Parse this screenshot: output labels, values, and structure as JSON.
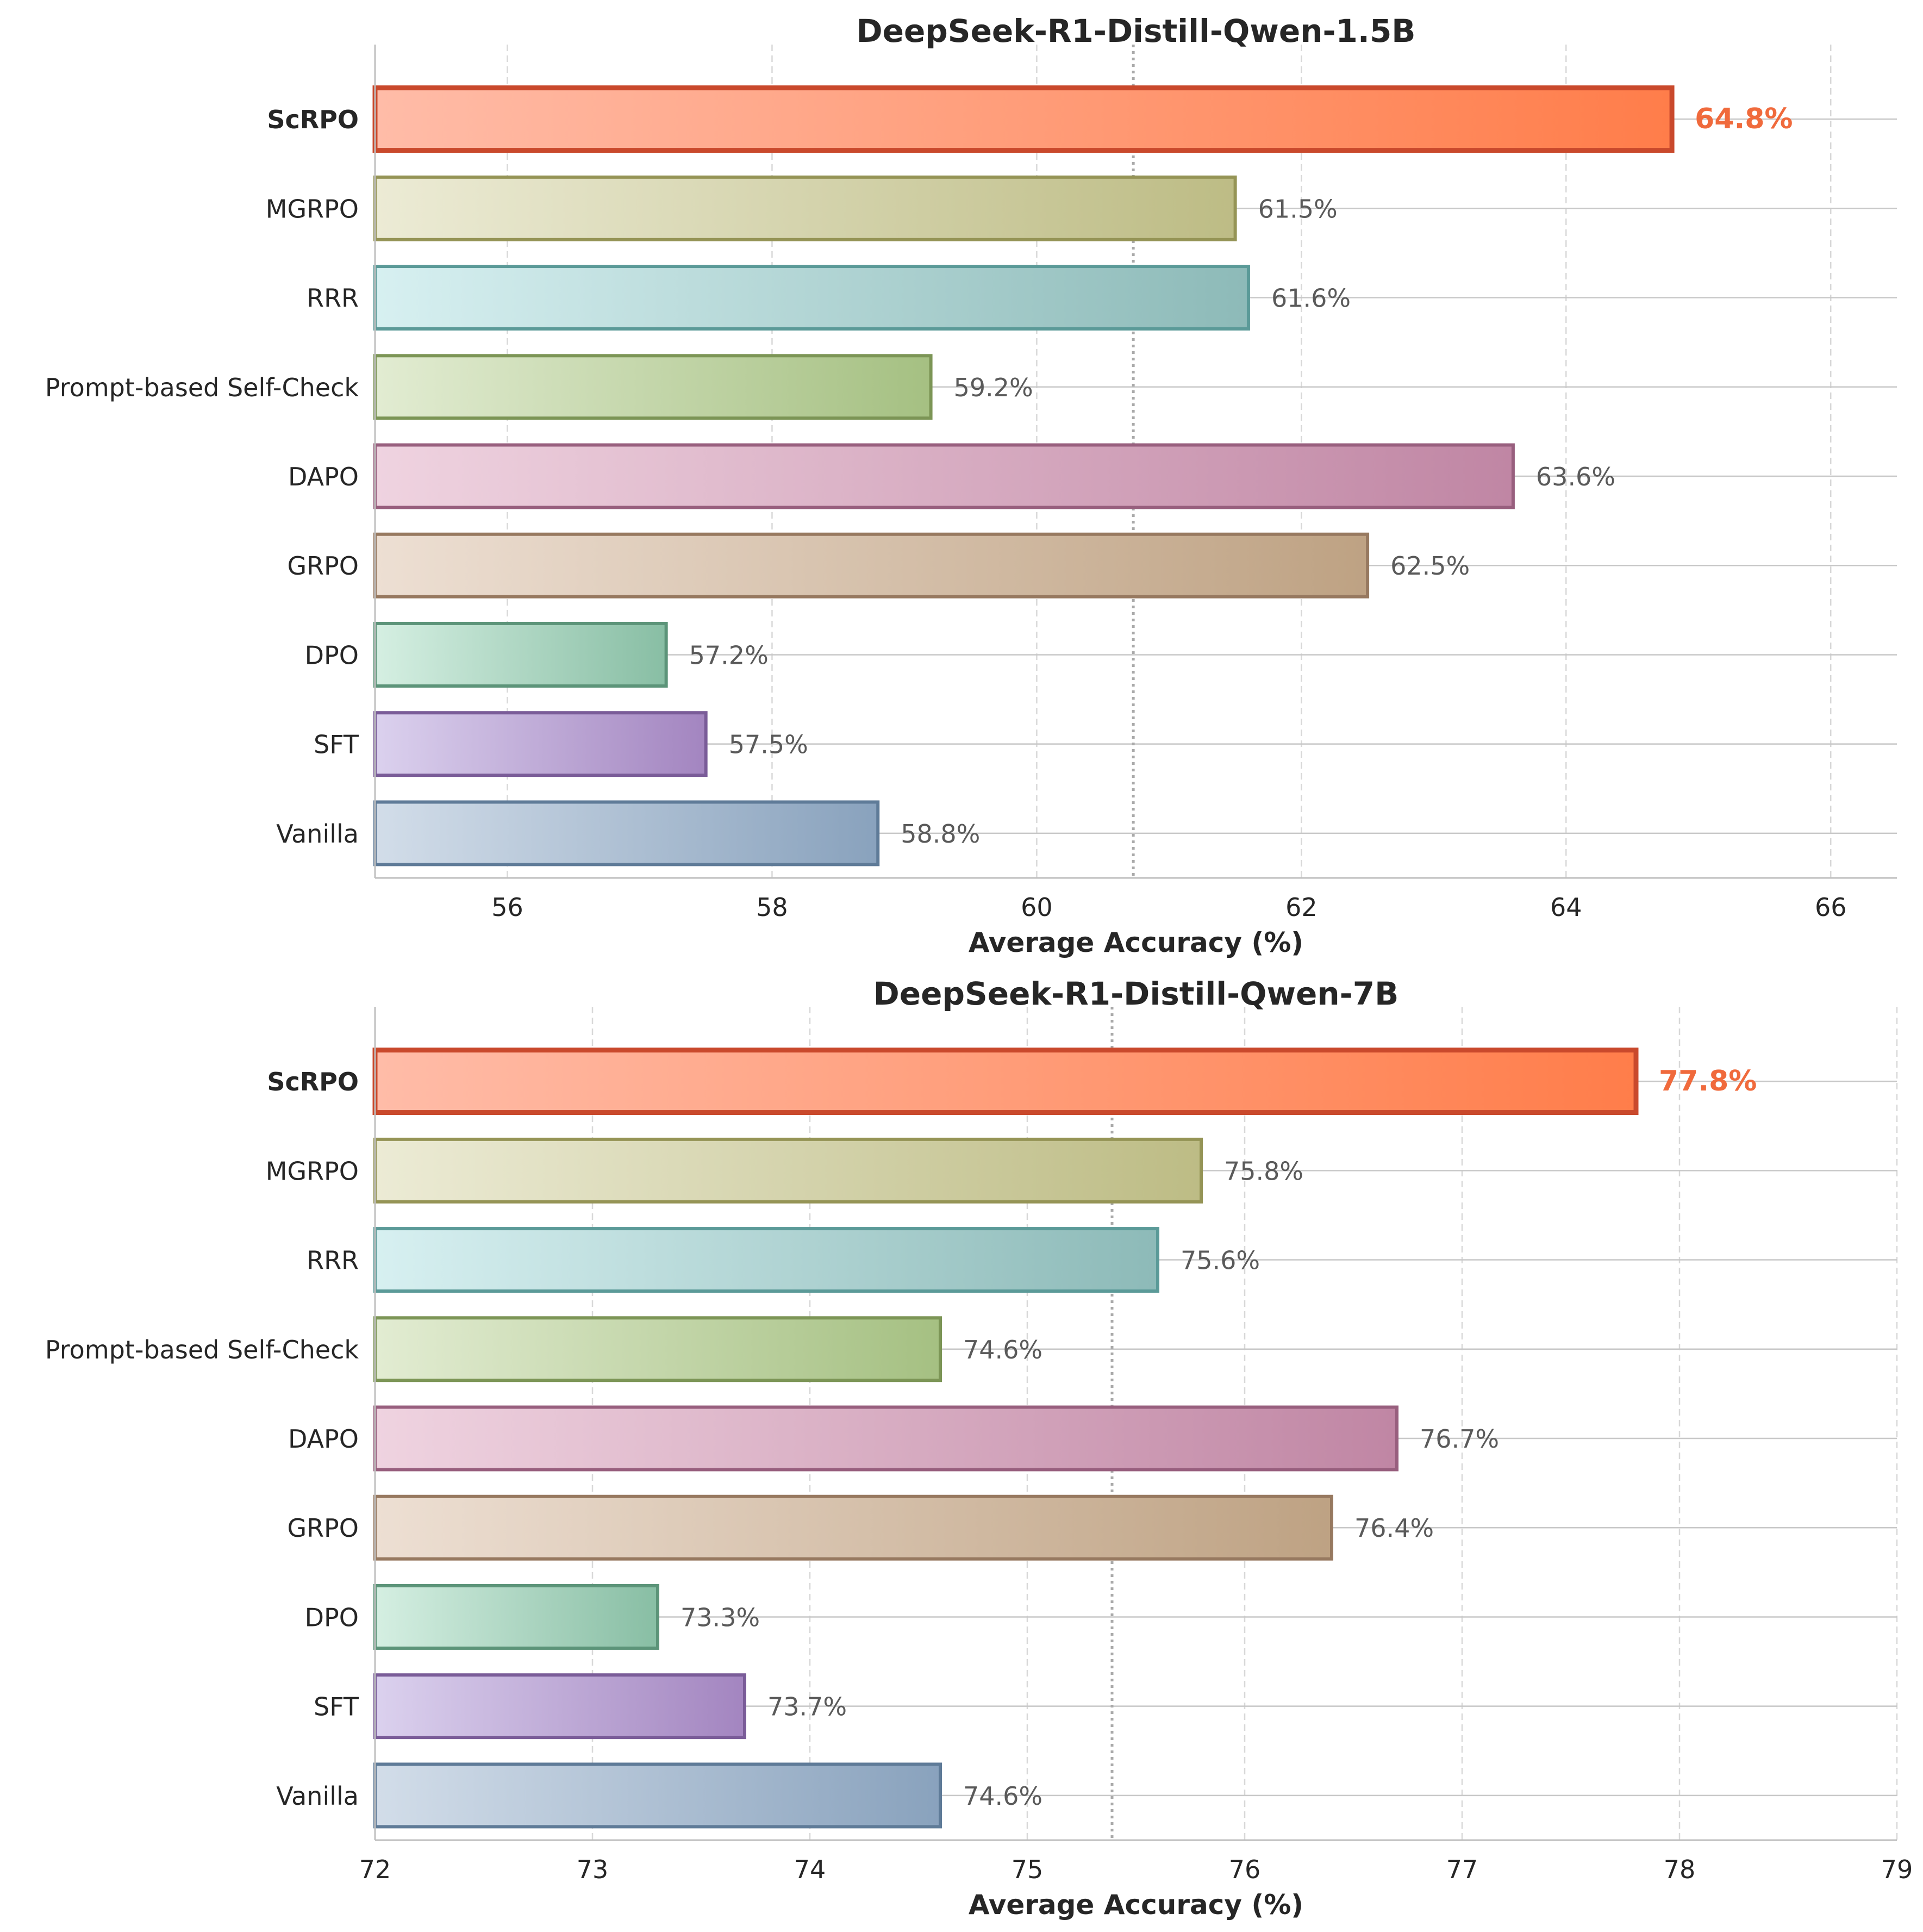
{
  "chart_data": [
    {
      "type": "bar",
      "orientation": "horizontal",
      "title": "DeepSeek-R1-Distill-Qwen-1.5B",
      "xlabel": "Average Accuracy (%)",
      "ylabel": "",
      "xlim": [
        55,
        66.5
      ],
      "xticks": [
        56,
        58,
        60,
        62,
        64,
        66
      ],
      "xtick_labels": [
        "56",
        "58",
        "60",
        "62",
        "64",
        "66"
      ],
      "reference_line": 60.73,
      "categories": [
        "ScRPO",
        "MGRPO",
        "RRR",
        "Prompt-based Self-Check",
        "DAPO",
        "GRPO",
        "DPO",
        "SFT",
        "Vanilla"
      ],
      "values": [
        64.8,
        61.5,
        61.6,
        59.2,
        63.6,
        62.5,
        57.2,
        57.5,
        58.8
      ],
      "value_labels": [
        "64.8%",
        "61.5%",
        "61.6%",
        "59.2%",
        "63.6%",
        "62.5%",
        "57.2%",
        "57.5%",
        "58.8%"
      ],
      "highlight_category": "ScRPO"
    },
    {
      "type": "bar",
      "orientation": "horizontal",
      "title": "DeepSeek-R1-Distill-Qwen-7B",
      "xlabel": "Average Accuracy (%)",
      "ylabel": "",
      "xlim": [
        72,
        79
      ],
      "xticks": [
        72,
        73,
        74,
        75,
        76,
        77,
        78,
        79
      ],
      "xtick_labels": [
        "72",
        "73",
        "74",
        "75",
        "76",
        "77",
        "78",
        "79"
      ],
      "reference_line": 75.39,
      "categories": [
        "ScRPO",
        "MGRPO",
        "RRR",
        "Prompt-based Self-Check",
        "DAPO",
        "GRPO",
        "DPO",
        "SFT",
        "Vanilla"
      ],
      "values": [
        77.8,
        75.8,
        75.6,
        74.6,
        76.7,
        76.4,
        73.3,
        73.7,
        74.6
      ],
      "value_labels": [
        "77.8%",
        "75.8%",
        "75.6%",
        "74.6%",
        "76.7%",
        "76.4%",
        "73.3%",
        "73.7%",
        "74.6%"
      ],
      "highlight_category": "ScRPO"
    }
  ],
  "colors": {
    "ScRPO": {
      "light": "#ffbca8",
      "dark": "#ff7d4a",
      "edge": "#c9492c",
      "label": "#f06a3c"
    },
    "MGRPO": {
      "light": "#ecebd5",
      "dark": "#bdbc85",
      "edge": "#959456"
    },
    "RRR": {
      "light": "#d7f0f1",
      "dark": "#8dbab8",
      "edge": "#5b9a98"
    },
    "Prompt-based Self-Check": {
      "light": "#e2ecd2",
      "dark": "#a5c082",
      "edge": "#7c9556"
    },
    "DAPO": {
      "light": "#efd3e0",
      "dark": "#c086a4",
      "edge": "#985f7e"
    },
    "GRPO": {
      "light": "#eddfd3",
      "dark": "#bea283",
      "edge": "#977960"
    },
    "DPO": {
      "light": "#d5efe2",
      "dark": "#88bea4",
      "edge": "#5c9479"
    },
    "SFT": {
      "light": "#dbd1ee",
      "dark": "#a385c0",
      "edge": "#7a5c98"
    },
    "Vanilla": {
      "light": "#d2dde9",
      "dark": "#89a2bd",
      "edge": "#5f7b98"
    },
    "value_label": "#5a5a5a",
    "text": "#262626",
    "grid": "#d8d8d8",
    "reference": "#aaaaaa"
  }
}
